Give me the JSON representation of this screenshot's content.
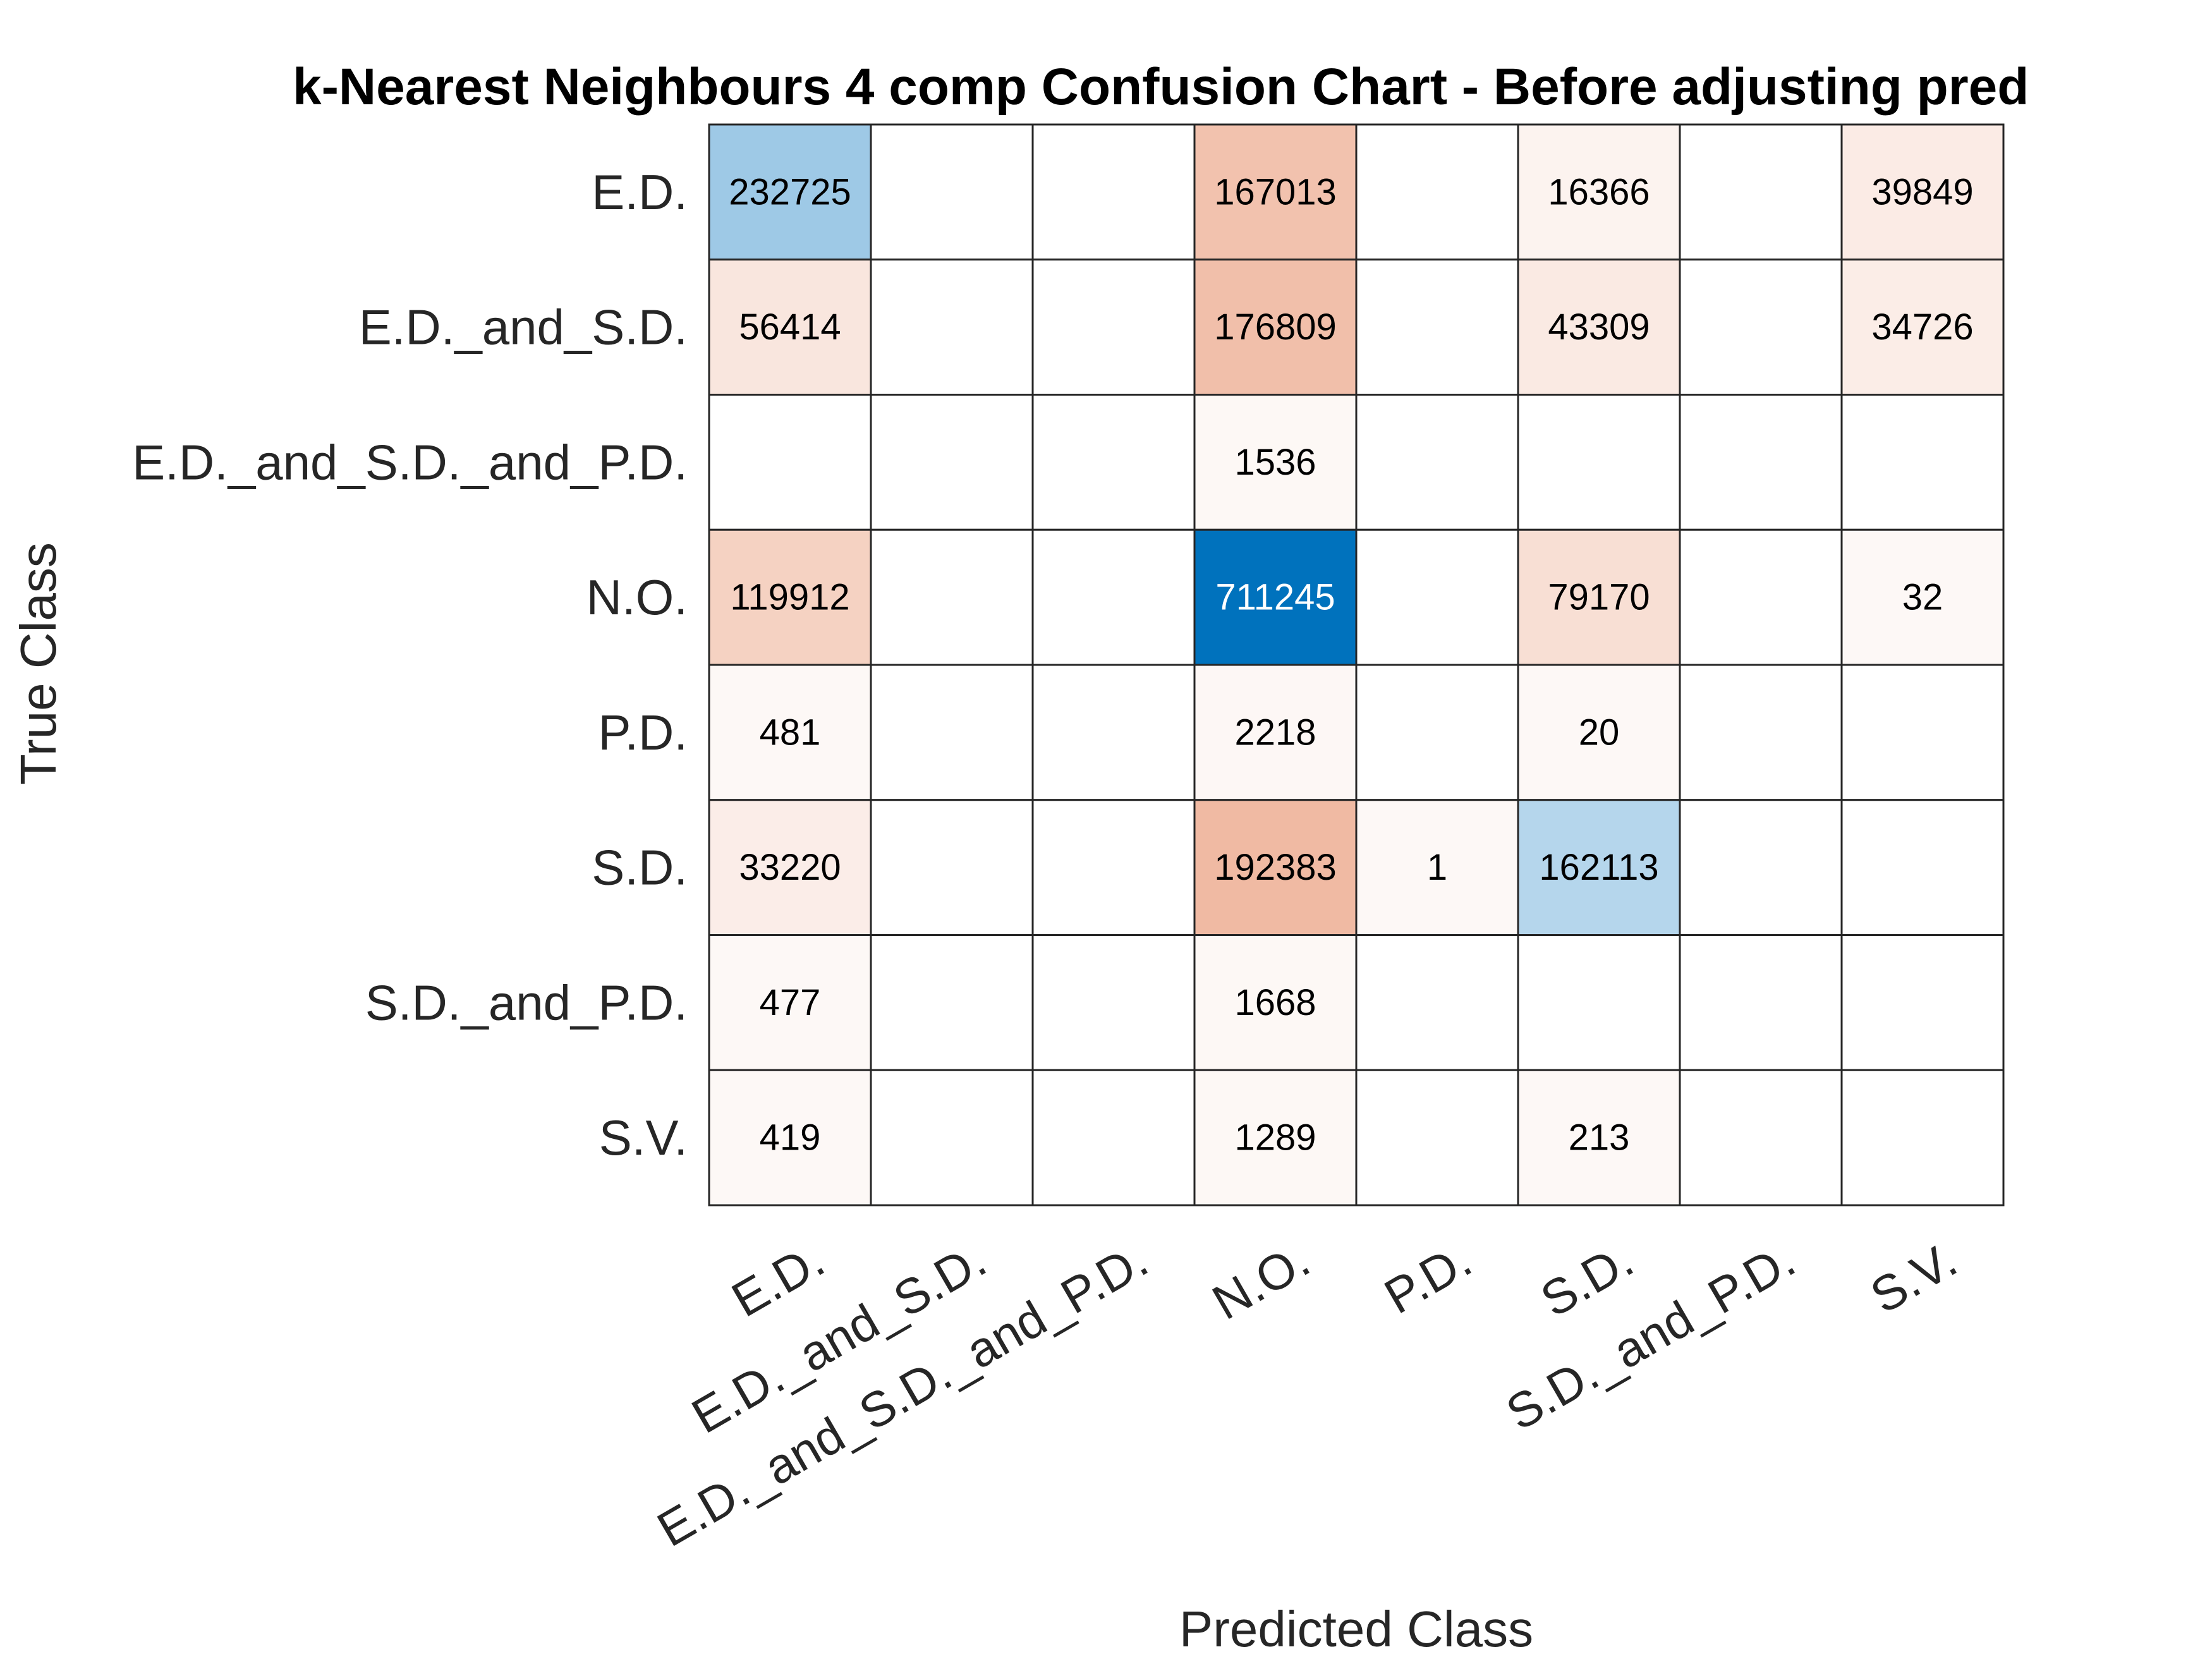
{
  "chart_data": {
    "type": "heatmap",
    "title": "k-Nearest Neighbours 4 comp Confusion Chart - Before adjusting pred",
    "xlabel": "Predicted Class",
    "ylabel": "True Class",
    "row_labels": [
      "E.D.",
      "E.D._and_S.D.",
      "E.D._and_S.D._and_P.D.",
      "N.O.",
      "P.D.",
      "S.D.",
      "S.D._and_P.D.",
      "S.V."
    ],
    "col_labels": [
      "E.D.",
      "E.D._and_S.D.",
      "E.D._and_S.D._and_P.D.",
      "N.O.",
      "P.D.",
      "S.D.",
      "S.D._and_P.D.",
      "S.V."
    ],
    "matrix": [
      [
        232725,
        0,
        0,
        167013,
        0,
        16366,
        0,
        39849
      ],
      [
        56414,
        0,
        0,
        176809,
        0,
        43309,
        0,
        34726
      ],
      [
        0,
        0,
        0,
        1536,
        0,
        0,
        0,
        0
      ],
      [
        119912,
        0,
        0,
        711245,
        0,
        79170,
        0,
        32
      ],
      [
        481,
        0,
        0,
        2218,
        0,
        20,
        0,
        0
      ],
      [
        33220,
        0,
        0,
        192383,
        1,
        162113,
        0,
        0
      ],
      [
        477,
        0,
        0,
        1668,
        0,
        0,
        0,
        0
      ],
      [
        419,
        0,
        0,
        1289,
        0,
        213,
        0,
        0
      ]
    ],
    "colors": {
      "diagonal": "#0072bd",
      "off_diagonal": "#d95319",
      "grid_line": "#262626",
      "text": "#262626"
    }
  }
}
